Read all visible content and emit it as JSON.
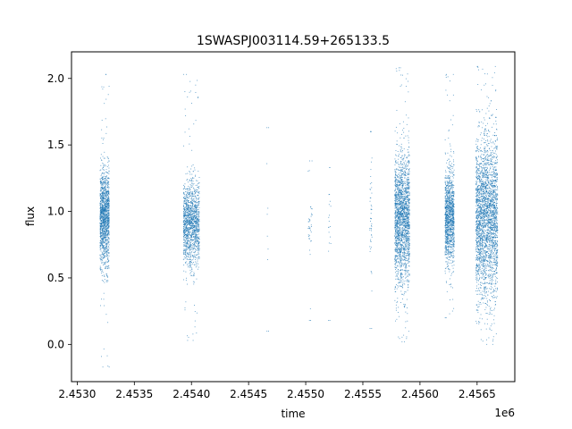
{
  "chart_data": {
    "type": "scatter",
    "title": "1SWASPJ003114.59+265133.5",
    "xlabel": "time",
    "ylabel": "flux",
    "x_offset_label": "1e6",
    "xlim": [
      2.45295,
      2.45683
    ],
    "ylim": [
      -0.28,
      2.2
    ],
    "x_ticks": [
      2.453,
      2.4535,
      2.454,
      2.4545,
      2.455,
      2.4555,
      2.456,
      2.4565
    ],
    "x_tick_labels": [
      "2.4530",
      "2.4535",
      "2.4540",
      "2.4545",
      "2.4550",
      "2.4555",
      "2.4560",
      "2.4565"
    ],
    "y_ticks": [
      0.0,
      0.5,
      1.0,
      1.5,
      2.0
    ],
    "y_tick_labels": [
      "0.0",
      "0.5",
      "1.0",
      "1.5",
      "2.0"
    ],
    "grid": false,
    "color": "#1f77b4",
    "series": [
      {
        "point_groups": [
          {
            "x_range": [
              2.4532,
              2.45328
            ],
            "y_center": 0.95,
            "y_spread": 0.18,
            "y_min": -0.17,
            "y_max": 2.03,
            "n": 1400
          },
          {
            "x_range": [
              2.45393,
              2.45407
            ],
            "y_center": 0.9,
            "y_spread": 0.16,
            "y_min": 0.03,
            "y_max": 2.03,
            "n": 1400
          },
          {
            "x_range": [
              2.45466,
              2.45468
            ],
            "y_center": 0.9,
            "y_spread": 0.3,
            "y_min": 0.1,
            "y_max": 1.63,
            "n": 10
          },
          {
            "x_range": [
              2.45502,
              2.45506
            ],
            "y_center": 0.9,
            "y_spread": 0.15,
            "y_min": 0.18,
            "y_max": 1.38,
            "n": 40
          },
          {
            "x_range": [
              2.4552,
              2.45522
            ],
            "y_center": 1.0,
            "y_spread": 0.2,
            "y_min": 0.18,
            "y_max": 1.33,
            "n": 20
          },
          {
            "x_range": [
              2.45556,
              2.45558
            ],
            "y_center": 0.9,
            "y_spread": 0.25,
            "y_min": 0.12,
            "y_max": 1.6,
            "n": 50
          },
          {
            "x_range": [
              2.45578,
              2.45591
            ],
            "y_center": 0.95,
            "y_spread": 0.24,
            "y_min": 0.02,
            "y_max": 2.08,
            "n": 2000
          },
          {
            "x_range": [
              2.45622,
              2.4563
            ],
            "y_center": 0.95,
            "y_spread": 0.18,
            "y_min": 0.2,
            "y_max": 2.03,
            "n": 1200
          },
          {
            "x_range": [
              2.45649,
              2.45668
            ],
            "y_center": 0.95,
            "y_spread": 0.3,
            "y_min": 0.0,
            "y_max": 2.09,
            "n": 2800
          }
        ]
      }
    ]
  }
}
